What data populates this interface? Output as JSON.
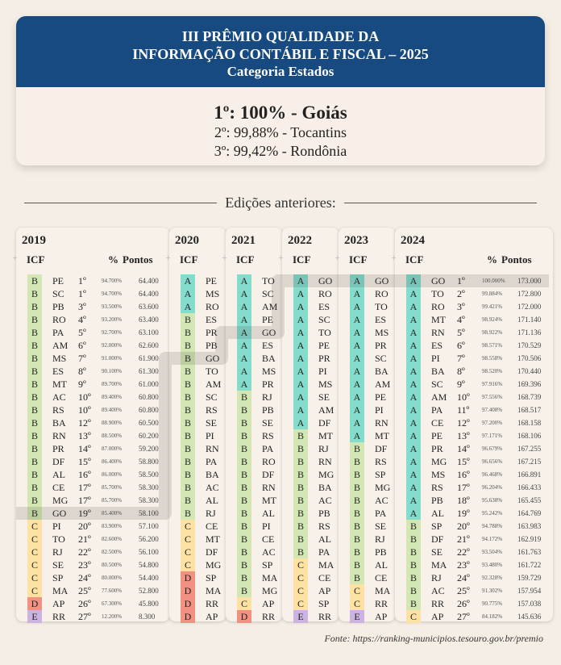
{
  "header": {
    "title_line1": "III PRÊMIO QUALIDADE DA",
    "title_line2": "INFORMAÇÃO CONTÁBIL E FISCAL – 2025",
    "category": "Categoria Estados",
    "first": "1º: 100% - Goiás",
    "second": "2º: 99,88% - Tocantins",
    "third": "3º: 99,42% - Rondônia",
    "color": "#174a80"
  },
  "section_title": "Edições anteriores:",
  "grade_colors": {
    "A": "#84dccd",
    "B": "#d2e7b4",
    "C": "#fde2a4",
    "D": "#f19182",
    "E": "#cdb3e2"
  },
  "highlight_state": "GO",
  "columns": {
    "icf": "ICF",
    "pct": "%",
    "pontos": "Pontos"
  },
  "editions": [
    {
      "year": "2019",
      "detailed": true,
      "rows": [
        {
          "grade": "B",
          "state": "PE",
          "rank": "1º",
          "pct": "94.700%",
          "points": "64.400"
        },
        {
          "grade": "B",
          "state": "SC",
          "rank": "1º",
          "pct": "94.700%",
          "points": "64.400"
        },
        {
          "grade": "B",
          "state": "PB",
          "rank": "3º",
          "pct": "93.500%",
          "points": "63.600"
        },
        {
          "grade": "B",
          "state": "RO",
          "rank": "4º",
          "pct": "93.200%",
          "points": "63.400"
        },
        {
          "grade": "B",
          "state": "PA",
          "rank": "5º",
          "pct": "92.700%",
          "points": "63.100"
        },
        {
          "grade": "B",
          "state": "AM",
          "rank": "6º",
          "pct": "92.000%",
          "points": "62.600"
        },
        {
          "grade": "B",
          "state": "MS",
          "rank": "7º",
          "pct": "91.000%",
          "points": "61.900"
        },
        {
          "grade": "B",
          "state": "ES",
          "rank": "8º",
          "pct": "90.100%",
          "points": "61.300"
        },
        {
          "grade": "B",
          "state": "MT",
          "rank": "9º",
          "pct": "89.700%",
          "points": "61.000"
        },
        {
          "grade": "B",
          "state": "AC",
          "rank": "10º",
          "pct": "89.400%",
          "points": "60.800"
        },
        {
          "grade": "B",
          "state": "RS",
          "rank": "10º",
          "pct": "89.400%",
          "points": "60.800"
        },
        {
          "grade": "B",
          "state": "BA",
          "rank": "12º",
          "pct": "88.900%",
          "points": "60.500"
        },
        {
          "grade": "B",
          "state": "RN",
          "rank": "13º",
          "pct": "88.500%",
          "points": "60.200"
        },
        {
          "grade": "B",
          "state": "PR",
          "rank": "14º",
          "pct": "87.000%",
          "points": "59.200"
        },
        {
          "grade": "B",
          "state": "DF",
          "rank": "15º",
          "pct": "86.400%",
          "points": "58.800"
        },
        {
          "grade": "B",
          "state": "AL",
          "rank": "16º",
          "pct": "86.000%",
          "points": "58.500"
        },
        {
          "grade": "B",
          "state": "CE",
          "rank": "17º",
          "pct": "85.700%",
          "points": "58.300"
        },
        {
          "grade": "B",
          "state": "MG",
          "rank": "17º",
          "pct": "85.700%",
          "points": "58.300"
        },
        {
          "grade": "B",
          "state": "GO",
          "rank": "19º",
          "pct": "85.400%",
          "points": "58.100"
        },
        {
          "grade": "C",
          "state": "PI",
          "rank": "20º",
          "pct": "83.900%",
          "points": "57.100"
        },
        {
          "grade": "C",
          "state": "TO",
          "rank": "21º",
          "pct": "82.600%",
          "points": "56.200"
        },
        {
          "grade": "C",
          "state": "RJ",
          "rank": "22º",
          "pct": "82.500%",
          "points": "56.100"
        },
        {
          "grade": "C",
          "state": "SE",
          "rank": "23º",
          "pct": "80.500%",
          "points": "54.800"
        },
        {
          "grade": "C",
          "state": "SP",
          "rank": "24º",
          "pct": "80.000%",
          "points": "54.400"
        },
        {
          "grade": "C",
          "state": "MA",
          "rank": "25º",
          "pct": "77.600%",
          "points": "52.800"
        },
        {
          "grade": "D",
          "state": "AP",
          "rank": "26º",
          "pct": "67.300%",
          "points": "45.800"
        },
        {
          "grade": "E",
          "state": "RR",
          "rank": "27º",
          "pct": "12.200%",
          "points": "8.300"
        }
      ]
    },
    {
      "year": "2020",
      "detailed": false,
      "rows": [
        {
          "grade": "A",
          "state": "PE"
        },
        {
          "grade": "A",
          "state": "MS"
        },
        {
          "grade": "A",
          "state": "RO"
        },
        {
          "grade": "B",
          "state": "ES"
        },
        {
          "grade": "B",
          "state": "PR"
        },
        {
          "grade": "B",
          "state": "PB"
        },
        {
          "grade": "B",
          "state": "GO"
        },
        {
          "grade": "B",
          "state": "TO"
        },
        {
          "grade": "B",
          "state": "AM"
        },
        {
          "grade": "B",
          "state": "SC"
        },
        {
          "grade": "B",
          "state": "RS"
        },
        {
          "grade": "B",
          "state": "SE"
        },
        {
          "grade": "B",
          "state": "PI"
        },
        {
          "grade": "B",
          "state": "RN"
        },
        {
          "grade": "B",
          "state": "PA"
        },
        {
          "grade": "B",
          "state": "BA"
        },
        {
          "grade": "B",
          "state": "AC"
        },
        {
          "grade": "B",
          "state": "AL"
        },
        {
          "grade": "B",
          "state": "RJ"
        },
        {
          "grade": "C",
          "state": "CE"
        },
        {
          "grade": "C",
          "state": "MT"
        },
        {
          "grade": "C",
          "state": "DF"
        },
        {
          "grade": "C",
          "state": "MG"
        },
        {
          "grade": "D",
          "state": "SP"
        },
        {
          "grade": "D",
          "state": "MA"
        },
        {
          "grade": "D",
          "state": "RR"
        },
        {
          "grade": "D",
          "state": "AP"
        }
      ]
    },
    {
      "year": "2021",
      "detailed": false,
      "rows": [
        {
          "grade": "A",
          "state": "TO"
        },
        {
          "grade": "A",
          "state": "SC"
        },
        {
          "grade": "A",
          "state": "AM"
        },
        {
          "grade": "A",
          "state": "PE"
        },
        {
          "grade": "A",
          "state": "GO"
        },
        {
          "grade": "A",
          "state": "ES"
        },
        {
          "grade": "A",
          "state": "BA"
        },
        {
          "grade": "A",
          "state": "MS"
        },
        {
          "grade": "A",
          "state": "PR"
        },
        {
          "grade": "B",
          "state": "RJ"
        },
        {
          "grade": "B",
          "state": "PB"
        },
        {
          "grade": "B",
          "state": "SE"
        },
        {
          "grade": "B",
          "state": "RS"
        },
        {
          "grade": "B",
          "state": "PA"
        },
        {
          "grade": "B",
          "state": "RO"
        },
        {
          "grade": "B",
          "state": "DF"
        },
        {
          "grade": "B",
          "state": "RN"
        },
        {
          "grade": "B",
          "state": "MT"
        },
        {
          "grade": "B",
          "state": "AL"
        },
        {
          "grade": "B",
          "state": "PI"
        },
        {
          "grade": "B",
          "state": "CE"
        },
        {
          "grade": "B",
          "state": "AC"
        },
        {
          "grade": "B",
          "state": "SP"
        },
        {
          "grade": "B",
          "state": "MA"
        },
        {
          "grade": "B",
          "state": "MG"
        },
        {
          "grade": "C",
          "state": "AP"
        },
        {
          "grade": "D",
          "state": "RR"
        }
      ]
    },
    {
      "year": "2022",
      "detailed": false,
      "rows": [
        {
          "grade": "A",
          "state": "GO"
        },
        {
          "grade": "A",
          "state": "RO"
        },
        {
          "grade": "A",
          "state": "ES"
        },
        {
          "grade": "A",
          "state": "SC"
        },
        {
          "grade": "A",
          "state": "TO"
        },
        {
          "grade": "A",
          "state": "PE"
        },
        {
          "grade": "A",
          "state": "PR"
        },
        {
          "grade": "A",
          "state": "PI"
        },
        {
          "grade": "A",
          "state": "MS"
        },
        {
          "grade": "A",
          "state": "SE"
        },
        {
          "grade": "A",
          "state": "AM"
        },
        {
          "grade": "A",
          "state": "DF"
        },
        {
          "grade": "B",
          "state": "MT"
        },
        {
          "grade": "B",
          "state": "RJ"
        },
        {
          "grade": "B",
          "state": "RN"
        },
        {
          "grade": "B",
          "state": "MG"
        },
        {
          "grade": "B",
          "state": "BA"
        },
        {
          "grade": "B",
          "state": "AC"
        },
        {
          "grade": "B",
          "state": "PB"
        },
        {
          "grade": "B",
          "state": "RS"
        },
        {
          "grade": "B",
          "state": "AL"
        },
        {
          "grade": "B",
          "state": "PA"
        },
        {
          "grade": "C",
          "state": "MA"
        },
        {
          "grade": "C",
          "state": "CE"
        },
        {
          "grade": "C",
          "state": "AP"
        },
        {
          "grade": "C",
          "state": "SP"
        },
        {
          "grade": "E",
          "state": "RR"
        }
      ]
    },
    {
      "year": "2023",
      "detailed": false,
      "rows": [
        {
          "grade": "A",
          "state": "GO"
        },
        {
          "grade": "A",
          "state": "RO"
        },
        {
          "grade": "A",
          "state": "TO"
        },
        {
          "grade": "A",
          "state": "ES"
        },
        {
          "grade": "A",
          "state": "MS"
        },
        {
          "grade": "A",
          "state": "PR"
        },
        {
          "grade": "A",
          "state": "SC"
        },
        {
          "grade": "A",
          "state": "BA"
        },
        {
          "grade": "A",
          "state": "AM"
        },
        {
          "grade": "A",
          "state": "PE"
        },
        {
          "grade": "A",
          "state": "PI"
        },
        {
          "grade": "A",
          "state": "RN"
        },
        {
          "grade": "A",
          "state": "MT"
        },
        {
          "grade": "B",
          "state": "DF"
        },
        {
          "grade": "B",
          "state": "RS"
        },
        {
          "grade": "B",
          "state": "SP"
        },
        {
          "grade": "B",
          "state": "MG"
        },
        {
          "grade": "B",
          "state": "AC"
        },
        {
          "grade": "B",
          "state": "PA"
        },
        {
          "grade": "B",
          "state": "SE"
        },
        {
          "grade": "B",
          "state": "RJ"
        },
        {
          "grade": "B",
          "state": "PB"
        },
        {
          "grade": "B",
          "state": "AL"
        },
        {
          "grade": "B",
          "state": "CE"
        },
        {
          "grade": "C",
          "state": "MA"
        },
        {
          "grade": "C",
          "state": "RR"
        },
        {
          "grade": "E",
          "state": "AP"
        }
      ]
    },
    {
      "year": "2024",
      "detailed": true,
      "rows": [
        {
          "grade": "A",
          "state": "GO",
          "rank": "1º",
          "pct": "100.000%",
          "points": "173.000"
        },
        {
          "grade": "A",
          "state": "TO",
          "rank": "2º",
          "pct": "99.884%",
          "points": "172.800"
        },
        {
          "grade": "A",
          "state": "RO",
          "rank": "3º",
          "pct": "99.421%",
          "points": "172.000"
        },
        {
          "grade": "A",
          "state": "MT",
          "rank": "4º",
          "pct": "98.924%",
          "points": "171.140"
        },
        {
          "grade": "A",
          "state": "RN",
          "rank": "5º",
          "pct": "98.922%",
          "points": "171.136"
        },
        {
          "grade": "A",
          "state": "ES",
          "rank": "6º",
          "pct": "98.571%",
          "points": "170.529"
        },
        {
          "grade": "A",
          "state": "PI",
          "rank": "7º",
          "pct": "98.558%",
          "points": "170.506"
        },
        {
          "grade": "A",
          "state": "BA",
          "rank": "8º",
          "pct": "98.520%",
          "points": "170.440"
        },
        {
          "grade": "A",
          "state": "SC",
          "rank": "9º",
          "pct": "97.916%",
          "points": "169.396"
        },
        {
          "grade": "A",
          "state": "AM",
          "rank": "10º",
          "pct": "97.556%",
          "points": "168.739"
        },
        {
          "grade": "A",
          "state": "PA",
          "rank": "11º",
          "pct": "97.408%",
          "points": "168.517"
        },
        {
          "grade": "A",
          "state": "CE",
          "rank": "12º",
          "pct": "97.200%",
          "points": "168.158"
        },
        {
          "grade": "A",
          "state": "PE",
          "rank": "13º",
          "pct": "97.171%",
          "points": "168.106"
        },
        {
          "grade": "A",
          "state": "PR",
          "rank": "14º",
          "pct": "96.679%",
          "points": "167.255"
        },
        {
          "grade": "A",
          "state": "MG",
          "rank": "15º",
          "pct": "96.656%",
          "points": "167.215"
        },
        {
          "grade": "A",
          "state": "MS",
          "rank": "16º",
          "pct": "96.468%",
          "points": "166.891"
        },
        {
          "grade": "A",
          "state": "RS",
          "rank": "17º",
          "pct": "96.204%",
          "points": "166.433"
        },
        {
          "grade": "A",
          "state": "PB",
          "rank": "18º",
          "pct": "95.638%",
          "points": "165.455"
        },
        {
          "grade": "A",
          "state": "AL",
          "rank": "19º",
          "pct": "95.242%",
          "points": "164.769"
        },
        {
          "grade": "B",
          "state": "SP",
          "rank": "20º",
          "pct": "94.788%",
          "points": "163.983"
        },
        {
          "grade": "B",
          "state": "DF",
          "rank": "21º",
          "pct": "94.172%",
          "points": "162.919"
        },
        {
          "grade": "B",
          "state": "SE",
          "rank": "22º",
          "pct": "93.504%",
          "points": "161.763"
        },
        {
          "grade": "B",
          "state": "MA",
          "rank": "23º",
          "pct": "93.480%",
          "points": "161.722"
        },
        {
          "grade": "B",
          "state": "RJ",
          "rank": "24º",
          "pct": "92.328%",
          "points": "159.729"
        },
        {
          "grade": "B",
          "state": "AC",
          "rank": "25º",
          "pct": "91.302%",
          "points": "157.954"
        },
        {
          "grade": "B",
          "state": "RR",
          "rank": "26º",
          "pct": "90.775%",
          "points": "157.038"
        },
        {
          "grade": "C",
          "state": "AP",
          "rank": "27º",
          "pct": "84.182%",
          "points": "145.636"
        }
      ]
    }
  ],
  "source": "Fonte: https://ranking-municipios.tesouro.gov.br/premio"
}
